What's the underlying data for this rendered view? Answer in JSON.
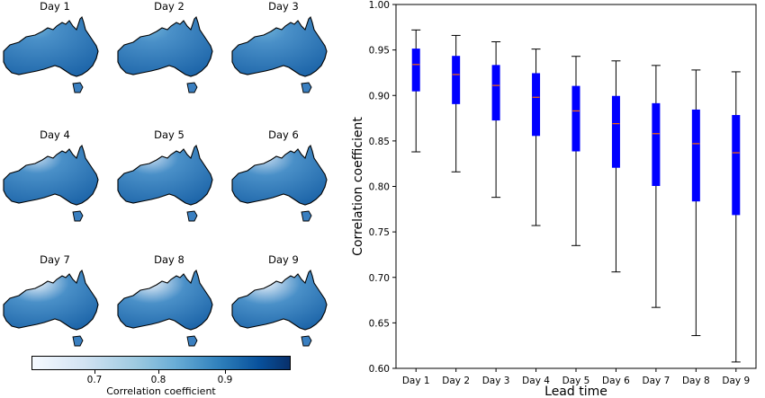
{
  "maps": {
    "panels": [
      {
        "title": "Day 1",
        "fade": 0.0
      },
      {
        "title": "Day 2",
        "fade": 0.1
      },
      {
        "title": "Day 3",
        "fade": 0.15
      },
      {
        "title": "Day 4",
        "fade": 0.25
      },
      {
        "title": "Day 5",
        "fade": 0.3
      },
      {
        "title": "Day 6",
        "fade": 0.35
      },
      {
        "title": "Day 7",
        "fade": 0.45
      },
      {
        "title": "Day 8",
        "fade": 0.5
      },
      {
        "title": "Day 9",
        "fade": 0.55
      }
    ],
    "colorbar": {
      "label": "Correlation coefficient",
      "ticks": [
        "0.7",
        "0.8",
        "0.9"
      ],
      "colors": [
        "#f6faff",
        "#9ecae1",
        "#3182bd",
        "#08306b"
      ]
    }
  },
  "chart_data": {
    "type": "box",
    "title": "",
    "xlabel": "Lead time",
    "ylabel": "Correlation coefficient",
    "ylim": [
      0.6,
      1.0
    ],
    "yticks": [
      "0.60",
      "0.65",
      "0.70",
      "0.75",
      "0.80",
      "0.85",
      "0.90",
      "0.95",
      "1.00"
    ],
    "box_color": "#0000ff",
    "median_color": "#ff6600",
    "categories": [
      "Day 1",
      "Day 2",
      "Day 3",
      "Day 4",
      "Day 5",
      "Day 6",
      "Day 7",
      "Day 8",
      "Day 9"
    ],
    "boxes": [
      {
        "min": 0.838,
        "q1": 0.905,
        "median": 0.934,
        "q3": 0.951,
        "max": 0.972
      },
      {
        "min": 0.816,
        "q1": 0.891,
        "median": 0.923,
        "q3": 0.943,
        "max": 0.966
      },
      {
        "min": 0.788,
        "q1": 0.873,
        "median": 0.911,
        "q3": 0.933,
        "max": 0.959
      },
      {
        "min": 0.757,
        "q1": 0.856,
        "median": 0.898,
        "q3": 0.924,
        "max": 0.951
      },
      {
        "min": 0.735,
        "q1": 0.839,
        "median": 0.883,
        "q3": 0.91,
        "max": 0.943
      },
      {
        "min": 0.706,
        "q1": 0.821,
        "median": 0.869,
        "q3": 0.899,
        "max": 0.938
      },
      {
        "min": 0.667,
        "q1": 0.801,
        "median": 0.858,
        "q3": 0.891,
        "max": 0.933
      },
      {
        "min": 0.636,
        "q1": 0.784,
        "median": 0.847,
        "q3": 0.884,
        "max": 0.928
      },
      {
        "min": 0.607,
        "q1": 0.769,
        "median": 0.837,
        "q3": 0.878,
        "max": 0.926
      }
    ]
  }
}
